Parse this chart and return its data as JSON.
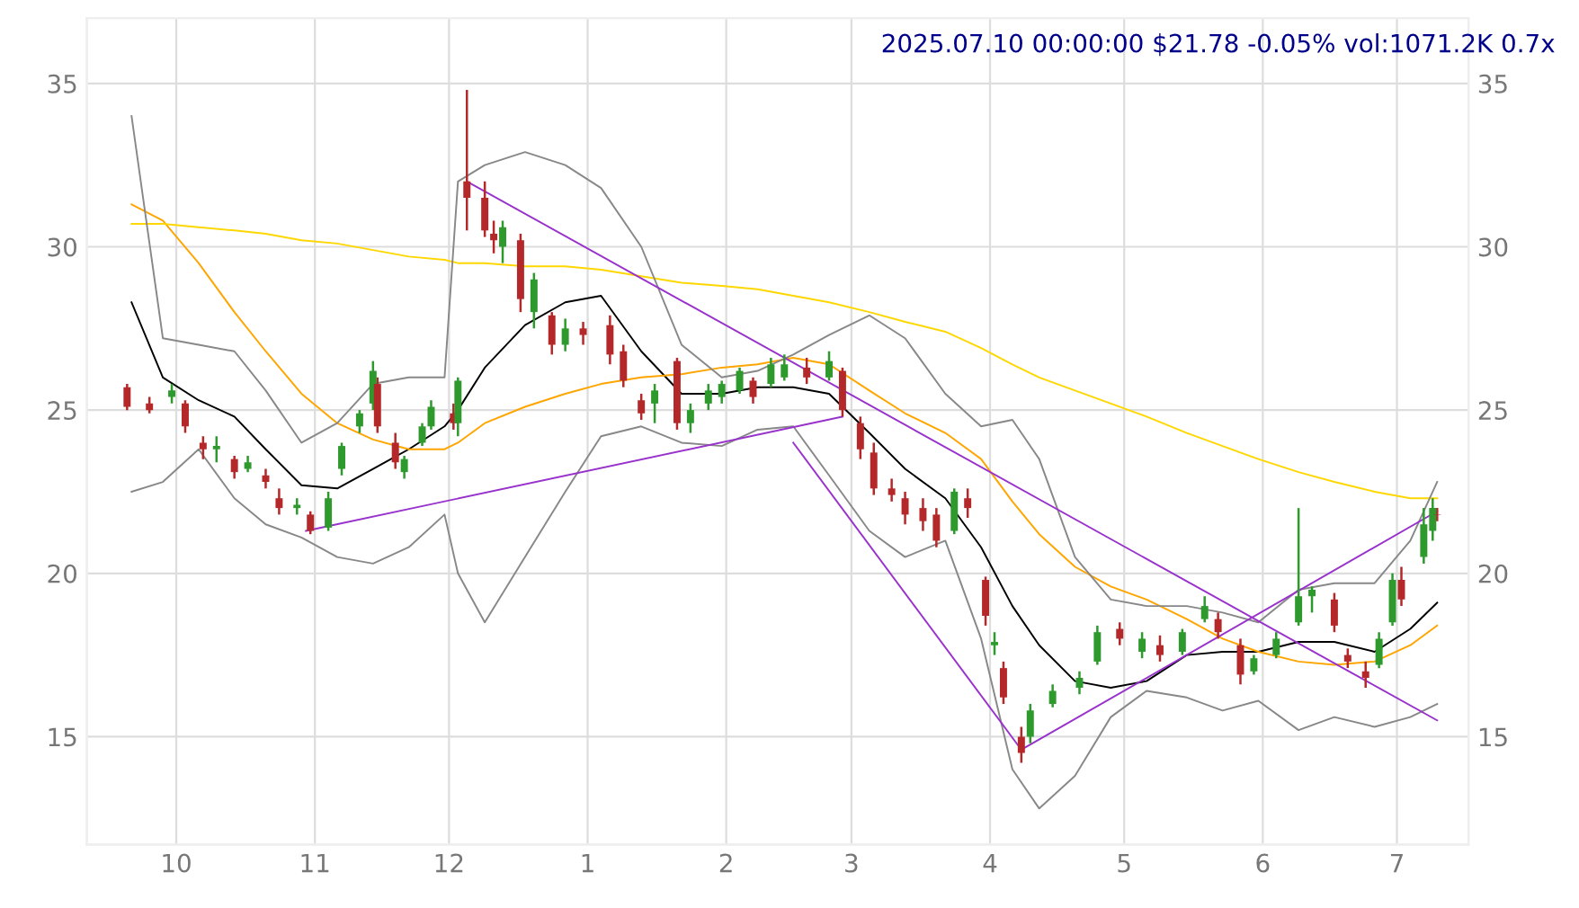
{
  "chart_data": {
    "type": "candlestick",
    "title": "2025.07.10 00:00:00 $21.78 -0.05% vol:1071.2K 0.7x",
    "x": [
      "2024-09-20",
      "2024-09-25",
      "2024-09-30",
      "2024-10-03",
      "2024-10-07",
      "2024-10-10",
      "2024-10-14",
      "2024-10-17",
      "2024-10-21",
      "2024-10-24",
      "2024-10-28",
      "2024-10-31",
      "2024-11-04",
      "2024-11-07",
      "2024-11-11",
      "2024-11-14",
      "2024-11-15",
      "2024-11-19",
      "2024-11-21",
      "2024-11-25",
      "2024-11-27",
      "2024-12-02",
      "2024-12-03",
      "2024-12-05",
      "2024-12-09",
      "2024-12-11",
      "2024-12-13",
      "2024-12-17",
      "2024-12-20",
      "2024-12-24",
      "2024-12-27",
      "2024-12-31",
      "2025-01-06",
      "2025-01-09",
      "2025-01-13",
      "2025-01-16",
      "2025-01-21",
      "2025-01-24",
      "2025-01-28",
      "2025-01-31",
      "2025-02-04",
      "2025-02-07",
      "2025-02-11",
      "2025-02-14",
      "2025-02-19",
      "2025-02-24",
      "2025-02-27",
      "2025-03-03",
      "2025-03-06",
      "2025-03-10",
      "2025-03-13",
      "2025-03-17",
      "2025-03-20",
      "2025-03-24",
      "2025-03-27",
      "2025-03-31",
      "2025-04-02",
      "2025-04-04",
      "2025-04-08",
      "2025-04-10",
      "2025-04-15",
      "2025-04-21",
      "2025-04-25",
      "2025-04-30",
      "2025-05-05",
      "2025-05-09",
      "2025-05-14",
      "2025-05-19",
      "2025-05-22",
      "2025-05-27",
      "2025-05-30",
      "2025-06-04",
      "2025-06-09",
      "2025-06-12",
      "2025-06-17",
      "2025-06-20",
      "2025-06-24",
      "2025-06-27",
      "2025-06-30",
      "2025-07-02",
      "2025-07-07",
      "2025-07-09",
      "2025-07-10"
    ],
    "ohlc": [
      [
        25.7,
        25.8,
        25.0,
        25.1
      ],
      [
        25.2,
        25.4,
        24.9,
        25.0
      ],
      [
        25.4,
        25.8,
        25.2,
        25.6
      ],
      [
        25.2,
        25.3,
        24.3,
        24.5
      ],
      [
        24.0,
        24.2,
        23.5,
        23.8
      ],
      [
        23.8,
        24.2,
        23.4,
        23.9
      ],
      [
        23.5,
        23.6,
        22.9,
        23.1
      ],
      [
        23.2,
        23.6,
        23.1,
        23.4
      ],
      [
        23.0,
        23.2,
        22.6,
        22.8
      ],
      [
        22.3,
        22.6,
        21.8,
        22.0
      ],
      [
        22.0,
        22.3,
        21.8,
        22.1
      ],
      [
        21.8,
        21.9,
        21.2,
        21.3
      ],
      [
        21.4,
        22.5,
        21.3,
        22.3
      ],
      [
        23.2,
        24.0,
        23.0,
        23.9
      ],
      [
        24.5,
        25.0,
        24.3,
        24.9
      ],
      [
        25.2,
        26.5,
        25.0,
        26.2
      ],
      [
        25.8,
        26.0,
        24.3,
        24.5
      ],
      [
        24.0,
        24.3,
        23.2,
        23.4
      ],
      [
        23.1,
        23.6,
        22.9,
        23.5
      ],
      [
        24.0,
        24.6,
        23.9,
        24.5
      ],
      [
        24.5,
        25.3,
        24.4,
        25.1
      ],
      [
        24.9,
        25.2,
        24.4,
        24.6
      ],
      [
        24.6,
        26.0,
        24.2,
        25.9
      ],
      [
        32.0,
        34.8,
        30.5,
        31.5
      ],
      [
        31.5,
        32.0,
        30.3,
        30.5
      ],
      [
        30.4,
        30.8,
        29.8,
        30.2
      ],
      [
        30.0,
        30.8,
        29.5,
        30.6
      ],
      [
        30.2,
        30.4,
        28.0,
        28.4
      ],
      [
        28.0,
        29.2,
        27.5,
        29.0
      ],
      [
        27.9,
        28.0,
        26.7,
        27.0
      ],
      [
        27.0,
        27.8,
        26.8,
        27.5
      ],
      [
        27.5,
        27.7,
        27.0,
        27.3
      ],
      [
        27.6,
        27.9,
        26.4,
        26.7
      ],
      [
        26.8,
        27.0,
        25.7,
        25.9
      ],
      [
        25.3,
        25.5,
        24.7,
        24.9
      ],
      [
        25.2,
        25.8,
        24.6,
        25.6
      ],
      [
        26.5,
        26.6,
        24.4,
        24.6
      ],
      [
        24.6,
        25.2,
        24.3,
        25.0
      ],
      [
        25.2,
        25.8,
        25.0,
        25.6
      ],
      [
        25.4,
        25.9,
        25.2,
        25.8
      ],
      [
        25.6,
        26.3,
        25.5,
        26.2
      ],
      [
        25.9,
        26.0,
        25.2,
        25.4
      ],
      [
        25.8,
        26.6,
        25.7,
        26.4
      ],
      [
        26.0,
        26.7,
        25.9,
        26.4
      ],
      [
        26.3,
        26.6,
        25.8,
        26.0
      ],
      [
        26.0,
        26.8,
        25.9,
        26.5
      ],
      [
        26.2,
        26.3,
        24.8,
        25.0
      ],
      [
        24.6,
        24.8,
        23.5,
        23.8
      ],
      [
        23.7,
        24.0,
        22.4,
        22.6
      ],
      [
        22.6,
        22.9,
        22.2,
        22.4
      ],
      [
        22.3,
        22.5,
        21.5,
        21.8
      ],
      [
        22.0,
        22.3,
        21.3,
        21.6
      ],
      [
        21.8,
        22.0,
        20.8,
        21.0
      ],
      [
        21.3,
        22.6,
        21.2,
        22.5
      ],
      [
        22.3,
        22.6,
        21.7,
        22.0
      ],
      [
        19.8,
        19.9,
        18.4,
        18.7
      ],
      [
        17.8,
        18.2,
        17.5,
        17.9
      ],
      [
        17.1,
        17.3,
        16.0,
        16.2
      ],
      [
        15.0,
        15.3,
        14.2,
        14.5
      ],
      [
        15.0,
        16.0,
        14.8,
        15.8
      ],
      [
        16.0,
        16.6,
        15.9,
        16.4
      ],
      [
        16.5,
        17.0,
        16.3,
        16.8
      ],
      [
        17.3,
        18.4,
        17.2,
        18.2
      ],
      [
        18.3,
        18.5,
        17.8,
        18.0
      ],
      [
        17.6,
        18.2,
        17.4,
        18.0
      ],
      [
        17.8,
        18.1,
        17.3,
        17.5
      ],
      [
        17.6,
        18.3,
        17.5,
        18.2
      ],
      [
        18.6,
        19.3,
        18.5,
        19.0
      ],
      [
        18.6,
        18.8,
        18.0,
        18.2
      ],
      [
        17.8,
        18.0,
        16.6,
        16.9
      ],
      [
        17.0,
        17.5,
        16.9,
        17.4
      ],
      [
        17.5,
        18.2,
        17.4,
        18.0
      ],
      [
        18.5,
        22.0,
        18.4,
        19.3
      ],
      [
        19.3,
        19.6,
        18.8,
        19.5
      ],
      [
        19.2,
        19.4,
        18.2,
        18.4
      ],
      [
        17.5,
        17.7,
        17.1,
        17.3
      ],
      [
        17.0,
        17.3,
        16.5,
        16.8
      ],
      [
        17.2,
        18.2,
        17.1,
        18.0
      ],
      [
        18.5,
        20.0,
        18.4,
        19.8
      ],
      [
        19.8,
        20.2,
        19.0,
        19.2
      ],
      [
        20.5,
        22.0,
        20.3,
        21.5
      ],
      [
        21.3,
        22.3,
        21.0,
        22.0
      ],
      [
        21.8,
        22.0,
        21.6,
        21.78
      ]
    ],
    "series": [
      {
        "type": "line",
        "color": "#000000",
        "x": [
          "2024-09-21",
          "2024-09-28",
          "2024-10-06",
          "2024-10-14",
          "2024-10-21",
          "2024-10-29",
          "2024-11-06",
          "2024-11-14",
          "2024-11-22",
          "2024-11-30",
          "2024-12-03",
          "2024-12-09",
          "2024-12-18",
          "2024-12-27",
          "2025-01-04",
          "2025-01-13",
          "2025-01-22",
          "2025-01-31",
          "2025-02-08",
          "2025-02-16",
          "2025-02-24",
          "2025-03-05",
          "2025-03-13",
          "2025-03-22",
          "2025-03-30",
          "2025-04-06",
          "2025-04-12",
          "2025-04-20",
          "2025-04-28",
          "2025-05-06",
          "2025-05-15",
          "2025-05-23",
          "2025-05-31",
          "2025-06-09",
          "2025-06-17",
          "2025-06-26",
          "2025-07-04",
          "2025-07-10"
        ],
        "values": [
          28.3,
          26.0,
          25.3,
          24.8,
          23.8,
          22.7,
          22.6,
          23.2,
          23.8,
          24.5,
          25.0,
          26.3,
          27.6,
          28.3,
          28.5,
          26.8,
          25.5,
          25.5,
          25.7,
          25.7,
          25.5,
          24.3,
          23.2,
          22.3,
          20.8,
          19.0,
          17.8,
          16.7,
          16.5,
          16.7,
          17.5,
          17.6,
          17.6,
          17.9,
          17.9,
          17.6,
          18.3,
          19.1
        ]
      },
      {
        "type": "line",
        "color": "#ffa500",
        "x": [
          "2024-09-21",
          "2024-09-28",
          "2024-10-06",
          "2024-10-14",
          "2024-10-21",
          "2024-10-29",
          "2024-11-06",
          "2024-11-14",
          "2024-11-22",
          "2024-11-30",
          "2024-12-03",
          "2024-12-09",
          "2024-12-18",
          "2024-12-27",
          "2025-01-04",
          "2025-01-13",
          "2025-01-22",
          "2025-01-31",
          "2025-02-08",
          "2025-02-16",
          "2025-02-24",
          "2025-03-05",
          "2025-03-13",
          "2025-03-22",
          "2025-03-30",
          "2025-04-06",
          "2025-04-12",
          "2025-04-20",
          "2025-04-28",
          "2025-05-06",
          "2025-05-15",
          "2025-05-23",
          "2025-05-31",
          "2025-06-09",
          "2025-06-17",
          "2025-06-26",
          "2025-07-04",
          "2025-07-10"
        ],
        "values": [
          31.3,
          30.8,
          29.5,
          28.0,
          26.8,
          25.5,
          24.6,
          24.1,
          23.8,
          23.8,
          24.0,
          24.6,
          25.1,
          25.5,
          25.8,
          26.0,
          26.1,
          26.3,
          26.4,
          26.6,
          26.4,
          25.6,
          24.9,
          24.3,
          23.5,
          22.2,
          21.2,
          20.2,
          19.6,
          19.2,
          18.6,
          18.0,
          17.6,
          17.3,
          17.2,
          17.3,
          17.8,
          18.4
        ]
      },
      {
        "type": "line",
        "color": "#ffd700",
        "x": [
          "2024-09-21",
          "2024-09-28",
          "2024-10-06",
          "2024-10-14",
          "2024-10-21",
          "2024-10-29",
          "2024-11-06",
          "2024-11-14",
          "2024-11-22",
          "2024-11-30",
          "2024-12-03",
          "2024-12-09",
          "2024-12-18",
          "2024-12-27",
          "2025-01-04",
          "2025-01-13",
          "2025-01-22",
          "2025-01-31",
          "2025-02-08",
          "2025-02-16",
          "2025-02-24",
          "2025-03-05",
          "2025-03-13",
          "2025-03-22",
          "2025-03-30",
          "2025-04-06",
          "2025-04-12",
          "2025-04-20",
          "2025-04-28",
          "2025-05-06",
          "2025-05-15",
          "2025-05-23",
          "2025-05-31",
          "2025-06-09",
          "2025-06-17",
          "2025-06-26",
          "2025-07-04",
          "2025-07-10"
        ],
        "values": [
          30.7,
          30.7,
          30.6,
          30.5,
          30.4,
          30.2,
          30.1,
          29.9,
          29.7,
          29.6,
          29.5,
          29.5,
          29.4,
          29.4,
          29.3,
          29.1,
          28.9,
          28.8,
          28.7,
          28.5,
          28.3,
          28.0,
          27.7,
          27.4,
          26.9,
          26.4,
          26.0,
          25.6,
          25.2,
          24.8,
          24.3,
          23.9,
          23.5,
          23.1,
          22.8,
          22.5,
          22.3,
          22.3
        ]
      },
      {
        "type": "line",
        "color": "#888888",
        "x": [
          "2024-09-21",
          "2024-09-28",
          "2024-10-06",
          "2024-10-14",
          "2024-10-21",
          "2024-10-29",
          "2024-11-06",
          "2024-11-14",
          "2024-11-22",
          "2024-11-30",
          "2024-12-03",
          "2024-12-09",
          "2024-12-18",
          "2024-12-27",
          "2025-01-04",
          "2025-01-13",
          "2025-01-22",
          "2025-01-31",
          "2025-02-08",
          "2025-02-16",
          "2025-02-24",
          "2025-03-05",
          "2025-03-13",
          "2025-03-22",
          "2025-03-30",
          "2025-04-06",
          "2025-04-12",
          "2025-04-20",
          "2025-04-28",
          "2025-05-06",
          "2025-05-15",
          "2025-05-23",
          "2025-05-31",
          "2025-06-09",
          "2025-06-17",
          "2025-06-26",
          "2025-07-04",
          "2025-07-10"
        ],
        "values": [
          34.0,
          27.2,
          27.0,
          26.8,
          25.6,
          24.0,
          24.6,
          25.8,
          26.0,
          26.0,
          32.0,
          32.5,
          32.9,
          32.5,
          31.8,
          30.0,
          27.0,
          26.0,
          26.2,
          26.7,
          27.3,
          27.9,
          27.2,
          25.5,
          24.5,
          24.7,
          23.5,
          20.5,
          19.2,
          19.0,
          19.0,
          18.8,
          18.5,
          19.5,
          19.7,
          19.7,
          21.0,
          22.8
        ]
      },
      {
        "type": "line",
        "color": "#888888",
        "x": [
          "2024-09-21",
          "2024-09-28",
          "2024-10-06",
          "2024-10-14",
          "2024-10-21",
          "2024-10-29",
          "2024-11-06",
          "2024-11-14",
          "2024-11-22",
          "2024-11-30",
          "2024-12-03",
          "2024-12-09",
          "2024-12-18",
          "2024-12-27",
          "2025-01-04",
          "2025-01-13",
          "2025-01-22",
          "2025-01-31",
          "2025-02-08",
          "2025-02-16",
          "2025-02-24",
          "2025-03-05",
          "2025-03-13",
          "2025-03-22",
          "2025-03-30",
          "2025-04-06",
          "2025-04-12",
          "2025-04-20",
          "2025-04-28",
          "2025-05-06",
          "2025-05-15",
          "2025-05-23",
          "2025-05-31",
          "2025-06-09",
          "2025-06-17",
          "2025-06-26",
          "2025-07-04",
          "2025-07-10"
        ],
        "values": [
          22.5,
          22.8,
          23.8,
          22.3,
          21.5,
          21.1,
          20.5,
          20.3,
          20.8,
          21.8,
          20.0,
          18.5,
          20.5,
          22.5,
          24.2,
          24.5,
          24.0,
          23.9,
          24.4,
          24.5,
          23.0,
          21.3,
          20.5,
          21.0,
          18.0,
          14.0,
          12.8,
          13.8,
          15.6,
          16.4,
          16.2,
          15.8,
          16.1,
          15.2,
          15.6,
          15.3,
          15.6,
          16.0
        ]
      },
      {
        "type": "line",
        "color": "#9932cc",
        "x": [
          "2024-10-30",
          "2025-02-27"
        ],
        "values": [
          21.3,
          24.8
        ]
      },
      {
        "type": "line",
        "color": "#9932cc",
        "x": [
          "2024-12-05",
          "2025-07-10"
        ],
        "values": [
          32.0,
          15.5
        ]
      },
      {
        "type": "line",
        "color": "#9932cc",
        "x": [
          "2025-02-16",
          "2025-04-08"
        ],
        "values": [
          24.0,
          14.6
        ]
      },
      {
        "type": "line",
        "color": "#9932cc",
        "x": [
          "2025-04-08",
          "2025-07-10"
        ],
        "values": [
          14.6,
          21.9
        ]
      }
    ],
    "xlim": [
      "2024-09-11",
      "2025-07-17"
    ],
    "xticks": [
      {
        "value": "2024-10-01",
        "label": "10"
      },
      {
        "value": "2024-11-01",
        "label": "11"
      },
      {
        "value": "2024-12-01",
        "label": "12"
      },
      {
        "value": "2025-01-01",
        "label": "1"
      },
      {
        "value": "2025-02-01",
        "label": "2"
      },
      {
        "value": "2025-03-01",
        "label": "3"
      },
      {
        "value": "2025-04-01",
        "label": "4"
      },
      {
        "value": "2025-05-01",
        "label": "5"
      },
      {
        "value": "2025-06-01",
        "label": "6"
      },
      {
        "value": "2025-07-01",
        "label": "7"
      }
    ],
    "ylim": [
      11.7,
      37.0
    ],
    "yticks": [
      15,
      20,
      25,
      30,
      35
    ],
    "y2lim": [
      11.7,
      37.0
    ],
    "y2ticks": [
      15,
      20,
      25,
      30,
      35
    ],
    "grid": true
  }
}
